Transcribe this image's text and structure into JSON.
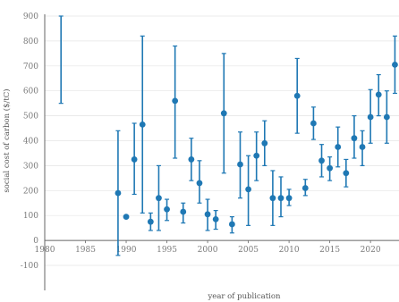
{
  "colors": {
    "marker": "#1f78b4",
    "axis": "#666666",
    "text": "#7a7a7a",
    "grid": "#e4e4e4"
  },
  "chart_data": {
    "type": "scatter",
    "title": "",
    "xlabel": "year of publication",
    "ylabel": "social cost of carbon ($/tC)",
    "xlim": [
      1980,
      2023.5
    ],
    "ylim": [
      -100,
      900
    ],
    "xticks": [
      1980,
      1985,
      1990,
      1995,
      2000,
      2005,
      2010,
      2015,
      2020
    ],
    "yticks": [
      -100,
      0,
      100,
      200,
      300,
      400,
      500,
      600,
      700,
      800,
      900
    ],
    "grid": true,
    "error_bars": true,
    "points": [
      {
        "x": 1982,
        "y": null,
        "low": 550,
        "high": 900
      },
      {
        "x": 1989,
        "y": 190,
        "low": -60,
        "high": 440
      },
      {
        "x": 1990,
        "y": 95,
        "low": null,
        "high": null
      },
      {
        "x": 1991,
        "y": 325,
        "low": 185,
        "high": 470
      },
      {
        "x": 1992,
        "y": 465,
        "low": 110,
        "high": 820
      },
      {
        "x": 1993,
        "y": 75,
        "low": 40,
        "high": 110
      },
      {
        "x": 1994,
        "y": 170,
        "low": 40,
        "high": 300
      },
      {
        "x": 1995,
        "y": 125,
        "low": 80,
        "high": 165
      },
      {
        "x": 1996,
        "y": 560,
        "low": 330,
        "high": 780
      },
      {
        "x": 1997,
        "y": 115,
        "low": 70,
        "high": 150
      },
      {
        "x": 1998,
        "y": 325,
        "low": 240,
        "high": 410
      },
      {
        "x": 1999,
        "y": 230,
        "low": 150,
        "high": 320
      },
      {
        "x": 2000,
        "y": 105,
        "low": 40,
        "high": 165
      },
      {
        "x": 2001,
        "y": 85,
        "low": 45,
        "high": 120
      },
      {
        "x": 2002,
        "y": 510,
        "low": 270,
        "high": 750
      },
      {
        "x": 2003,
        "y": 65,
        "low": 30,
        "high": 95
      },
      {
        "x": 2004,
        "y": 305,
        "low": 170,
        "high": 435
      },
      {
        "x": 2005,
        "y": 205,
        "low": 60,
        "high": 340
      },
      {
        "x": 2006,
        "y": 340,
        "low": 240,
        "high": 435
      },
      {
        "x": 2007,
        "y": 390,
        "low": 300,
        "high": 480
      },
      {
        "x": 2008,
        "y": 170,
        "low": 60,
        "high": 280
      },
      {
        "x": 2009,
        "y": 170,
        "low": 95,
        "high": 255
      },
      {
        "x": 2010,
        "y": 170,
        "low": 140,
        "high": 205
      },
      {
        "x": 2011,
        "y": 580,
        "low": 430,
        "high": 730
      },
      {
        "x": 2012,
        "y": 210,
        "low": 180,
        "high": 245
      },
      {
        "x": 2013,
        "y": 470,
        "low": 405,
        "high": 535
      },
      {
        "x": 2014,
        "y": 320,
        "low": 255,
        "high": 385
      },
      {
        "x": 2015,
        "y": 290,
        "low": 240,
        "high": 335
      },
      {
        "x": 2016,
        "y": 375,
        "low": 295,
        "high": 455
      },
      {
        "x": 2017,
        "y": 270,
        "low": 215,
        "high": 325
      },
      {
        "x": 2018,
        "y": 410,
        "low": 330,
        "high": 500
      },
      {
        "x": 2019,
        "y": 375,
        "low": 300,
        "high": 440
      },
      {
        "x": 2020,
        "y": 495,
        "low": 390,
        "high": 605
      },
      {
        "x": 2021,
        "y": 585,
        "low": 500,
        "high": 665
      },
      {
        "x": 2022,
        "y": 495,
        "low": 390,
        "high": 600
      },
      {
        "x": 2023,
        "y": 705,
        "low": 590,
        "high": 820
      }
    ]
  }
}
